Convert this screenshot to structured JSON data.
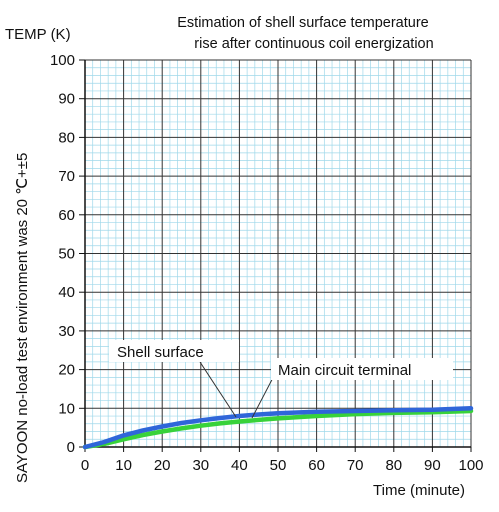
{
  "chart_data": {
    "type": "line",
    "title_lines": [
      "Estimation of shell surface temperature",
      "rise after continuous coil energization"
    ],
    "ylabel": "TEMP (K)",
    "xlabel": "Time (minute)",
    "side_note": "SAYOON no-load test environment was 20 ℃+±5",
    "xlim": [
      0,
      100
    ],
    "ylim": [
      0,
      100
    ],
    "x_ticks": [
      "0",
      "10",
      "20",
      "30",
      "40",
      "50",
      "60",
      "70",
      "80",
      "90",
      "100"
    ],
    "y_ticks": [
      "0",
      "10",
      "20",
      "30",
      "40",
      "50",
      "60",
      "70",
      "80",
      "90",
      "100"
    ],
    "grid": true,
    "series": [
      {
        "name": "Shell surface",
        "color": "#2f66d9",
        "x": [
          0,
          5,
          10,
          15,
          20,
          25,
          30,
          35,
          40,
          45,
          50,
          60,
          70,
          80,
          90,
          100
        ],
        "y": [
          0,
          1.3,
          3.0,
          4.3,
          5.3,
          6.2,
          6.9,
          7.5,
          8.0,
          8.4,
          8.7,
          9.1,
          9.3,
          9.5,
          9.6,
          10.0
        ]
      },
      {
        "name": "Main circuit terminal",
        "color": "#38d23a",
        "x": [
          0,
          5,
          10,
          15,
          20,
          25,
          30,
          35,
          40,
          45,
          50,
          60,
          70,
          80,
          90,
          100
        ],
        "y": [
          0,
          0.8,
          2.0,
          3.1,
          4.0,
          4.8,
          5.5,
          6.1,
          6.6,
          7.0,
          7.4,
          8.0,
          8.5,
          8.8,
          9.0,
          9.3
        ]
      }
    ]
  }
}
